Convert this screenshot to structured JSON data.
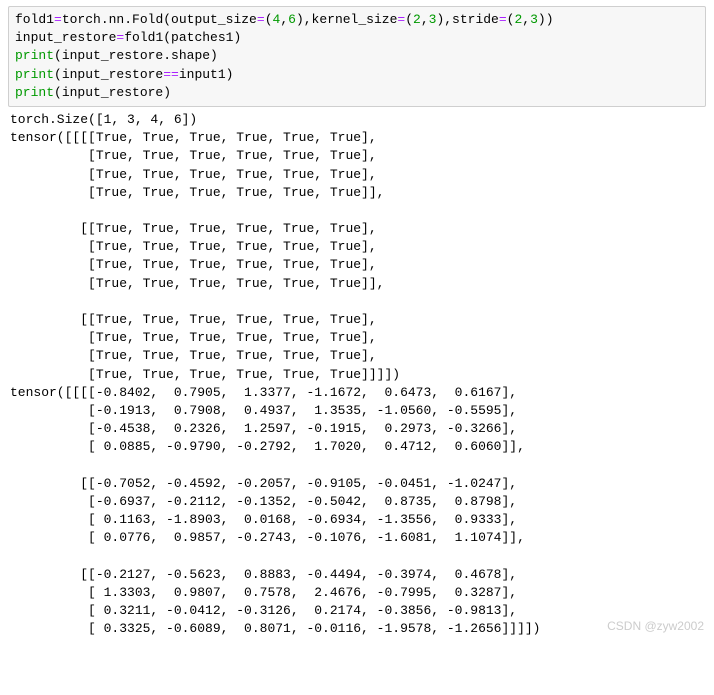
{
  "code": {
    "line1": {
      "t1": "fold1",
      "eq": "=",
      "t2": "torch.nn.Fold(output_size",
      "eq2": "=",
      "p1": "(",
      "n1": "4",
      "c1": ",",
      "n2": "6",
      "p2": ")",
      "t3": ",kernel_size",
      "eq3": "=",
      "p3": "(",
      "n3": "2",
      "c2": ",",
      "n4": "3",
      "p4": ")",
      "t4": ",stride",
      "eq4": "=",
      "p5": "(",
      "n5": "2",
      "c3": ",",
      "n6": "3",
      "p6": "))"
    },
    "line2": {
      "t1": "input_restore",
      "eq": "=",
      "t2": "fold1(patches1)"
    },
    "line3": {
      "fn": "print",
      "t": "(input_restore.shape)"
    },
    "line4": {
      "fn": "print",
      "t1": "(input_restore",
      "op": "==",
      "t2": "input1)"
    },
    "line5": {
      "fn": "print",
      "t": "(input_restore)"
    }
  },
  "output_text": "torch.Size([1, 3, 4, 6])\ntensor([[[[True, True, True, True, True, True],\n          [True, True, True, True, True, True],\n          [True, True, True, True, True, True],\n          [True, True, True, True, True, True]],\n\n         [[True, True, True, True, True, True],\n          [True, True, True, True, True, True],\n          [True, True, True, True, True, True],\n          [True, True, True, True, True, True]],\n\n         [[True, True, True, True, True, True],\n          [True, True, True, True, True, True],\n          [True, True, True, True, True, True],\n          [True, True, True, True, True, True]]]])\ntensor([[[[-0.8402,  0.7905,  1.3377, -1.1672,  0.6473,  0.6167],\n          [-0.1913,  0.7908,  0.4937,  1.3535, -1.0560, -0.5595],\n          [-0.4538,  0.2326,  1.2597, -0.1915,  0.2973, -0.3266],\n          [ 0.0885, -0.9790, -0.2792,  1.7020,  0.4712,  0.6060]],\n\n         [[-0.7052, -0.4592, -0.2057, -0.9105, -0.0451, -1.0247],\n          [-0.6937, -0.2112, -0.1352, -0.5042,  0.8735,  0.8798],\n          [ 0.1163, -1.8903,  0.0168, -0.6934, -1.3556,  0.9333],\n          [ 0.0776,  0.9857, -0.2743, -0.1076, -1.6081,  1.1074]],\n\n         [[-0.2127, -0.5623,  0.8883, -0.4494, -0.3974,  0.4678],\n          [ 1.3303,  0.9807,  0.7578,  2.4676, -0.7995,  0.3287],\n          [ 0.3211, -0.0412, -0.3126,  0.2174, -0.3856, -0.9813],\n          [ 0.3325, -0.6089,  0.8071, -0.0116, -1.9578, -1.2656]]]])",
  "watermark": "CSDN @zyw2002",
  "colors": {
    "code_bg": "#f7f7f7",
    "code_border": "#cfcfcf",
    "operator": "#aa22ff",
    "number": "#009900",
    "builtin": "#009900",
    "text": "#000000",
    "watermark": "#cccccc"
  }
}
